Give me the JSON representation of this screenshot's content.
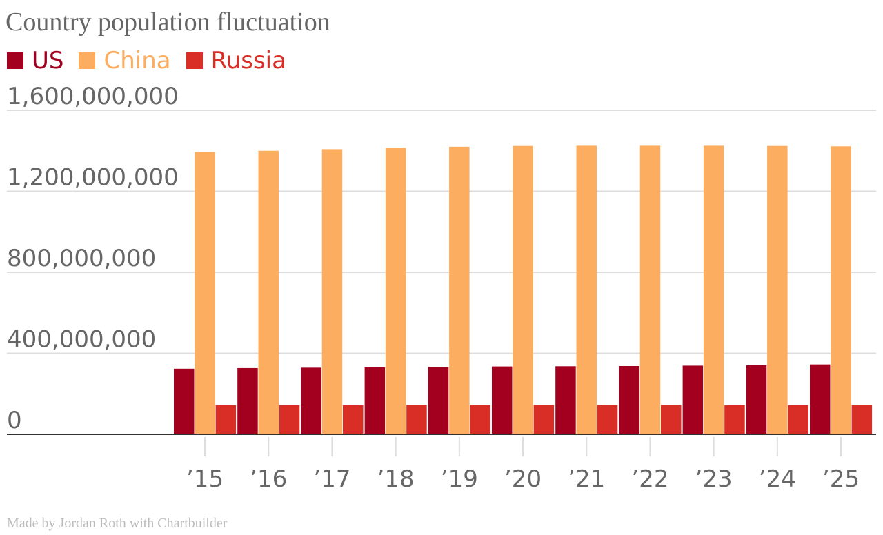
{
  "chart_data": {
    "type": "bar",
    "title": "Country population fluctuation",
    "categories": [
      "’15",
      "’16",
      "’17",
      "’18",
      "’19",
      "’20",
      "’21",
      "’22",
      "’23",
      "’24",
      "’25"
    ],
    "series": [
      {
        "name": "US",
        "color": "#a3001f",
        "values": [
          324000000,
          327000000,
          329000000,
          331000000,
          333000000,
          335000000,
          336000000,
          337000000,
          339000000,
          341000000,
          345000000
        ]
      },
      {
        "name": "China",
        "color": "#fdad60",
        "values": [
          1394000000,
          1400000000,
          1408000000,
          1415000000,
          1420000000,
          1424000000,
          1425000000,
          1425000000,
          1425000000,
          1424000000,
          1422000000
        ]
      },
      {
        "name": "Russia",
        "color": "#d82e26",
        "values": [
          144000000,
          144000000,
          144000000,
          145000000,
          145000000,
          145000000,
          145000000,
          145000000,
          144000000,
          144000000,
          143000000
        ]
      }
    ],
    "yticks": [
      "0",
      "400,000,000",
      "800,000,000",
      "1,200,000,000",
      "1,600,000,000"
    ],
    "ytick_values": [
      0,
      400000000,
      800000000,
      1200000000,
      1600000000
    ],
    "ylim": [
      0,
      1600000000
    ],
    "xlabel": "",
    "ylabel": "",
    "grid": true,
    "legend": "top-left"
  },
  "footer": "Made by Jordan Roth with Chartbuilder"
}
